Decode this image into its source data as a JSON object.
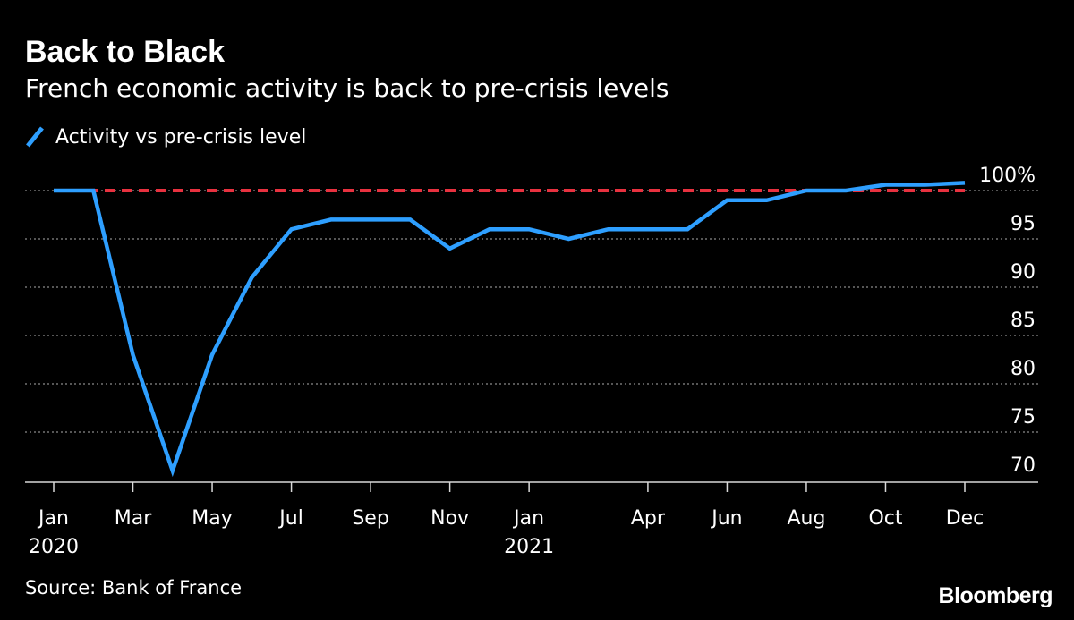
{
  "header": {
    "title": "Back to Black",
    "subtitle": "French economic activity is back to pre-crisis levels"
  },
  "legend": {
    "label": "Activity vs pre-crisis level"
  },
  "footer": {
    "source": "Source: Bank of France",
    "brand": "Bloomberg"
  },
  "chart_data": {
    "type": "line",
    "x": [
      "2020-01",
      "2020-02",
      "2020-03",
      "2020-04",
      "2020-05",
      "2020-06",
      "2020-07",
      "2020-08",
      "2020-09",
      "2020-10",
      "2020-11",
      "2020-12",
      "2021-01",
      "2021-02",
      "2021-03",
      "2021-04",
      "2021-05",
      "2021-06",
      "2021-07",
      "2021-08",
      "2021-09",
      "2021-10",
      "2021-11",
      "2021-12"
    ],
    "series": [
      {
        "name": "Activity vs pre-crisis level",
        "color": "#2e9fff",
        "values": [
          100,
          100,
          83,
          71,
          83,
          91,
          96,
          97,
          97,
          97,
          94,
          96,
          96,
          95,
          96,
          96,
          96,
          99,
          99,
          100,
          100,
          100.6,
          100.6,
          100.8
        ]
      }
    ],
    "reference_line": {
      "value": 100,
      "color": "#e8313f",
      "style": "dashed"
    },
    "xticks": [
      {
        "x": "2020-01",
        "label": "Jan",
        "year": "2020"
      },
      {
        "x": "2020-03",
        "label": "Mar"
      },
      {
        "x": "2020-05",
        "label": "May"
      },
      {
        "x": "2020-07",
        "label": "Jul"
      },
      {
        "x": "2020-09",
        "label": "Sep"
      },
      {
        "x": "2020-11",
        "label": "Nov"
      },
      {
        "x": "2021-01",
        "label": "Jan",
        "year": "2021"
      },
      {
        "x": "2021-04",
        "label": "Apr"
      },
      {
        "x": "2021-06",
        "label": "Jun"
      },
      {
        "x": "2021-08",
        "label": "Aug"
      },
      {
        "x": "2021-10",
        "label": "Oct"
      },
      {
        "x": "2021-12",
        "label": "Dec"
      }
    ],
    "yticks": [
      {
        "value": 100,
        "label": "100%"
      },
      {
        "value": 95,
        "label": "95"
      },
      {
        "value": 90,
        "label": "90"
      },
      {
        "value": 85,
        "label": "85"
      },
      {
        "value": 80,
        "label": "80"
      },
      {
        "value": 75,
        "label": "75"
      },
      {
        "value": 70,
        "label": "70"
      }
    ],
    "ylim": [
      70,
      100
    ],
    "grid": true,
    "ylabel_position": "right",
    "legend_position": "top-left"
  }
}
